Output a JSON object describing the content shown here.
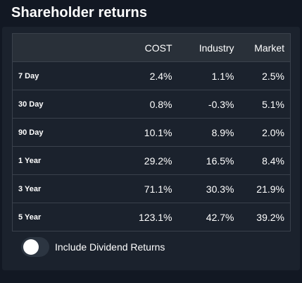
{
  "title": "Shareholder returns",
  "table": {
    "headers": [
      "",
      "COST",
      "Industry",
      "Market"
    ],
    "rows": [
      {
        "period": "7 Day",
        "cost": "2.4%",
        "industry": "1.1%",
        "market": "2.5%"
      },
      {
        "period": "30 Day",
        "cost": "0.8%",
        "industry": "-0.3%",
        "market": "5.1%"
      },
      {
        "period": "90 Day",
        "cost": "10.1%",
        "industry": "8.9%",
        "market": "2.0%"
      },
      {
        "period": "1 Year",
        "cost": "29.2%",
        "industry": "16.5%",
        "market": "8.4%"
      },
      {
        "period": "3 Year",
        "cost": "71.1%",
        "industry": "30.3%",
        "market": "21.9%"
      },
      {
        "period": "5 Year",
        "cost": "123.1%",
        "industry": "42.7%",
        "market": "39.2%"
      }
    ]
  },
  "toggle": {
    "label": "Include Dividend Returns",
    "checked": false
  },
  "colors": {
    "background": "#121823",
    "card": "#1b222d",
    "header_row": "#293039",
    "border": "#3a414c",
    "toggle_track": "#2c3541",
    "toggle_knob": "#ffffff"
  }
}
